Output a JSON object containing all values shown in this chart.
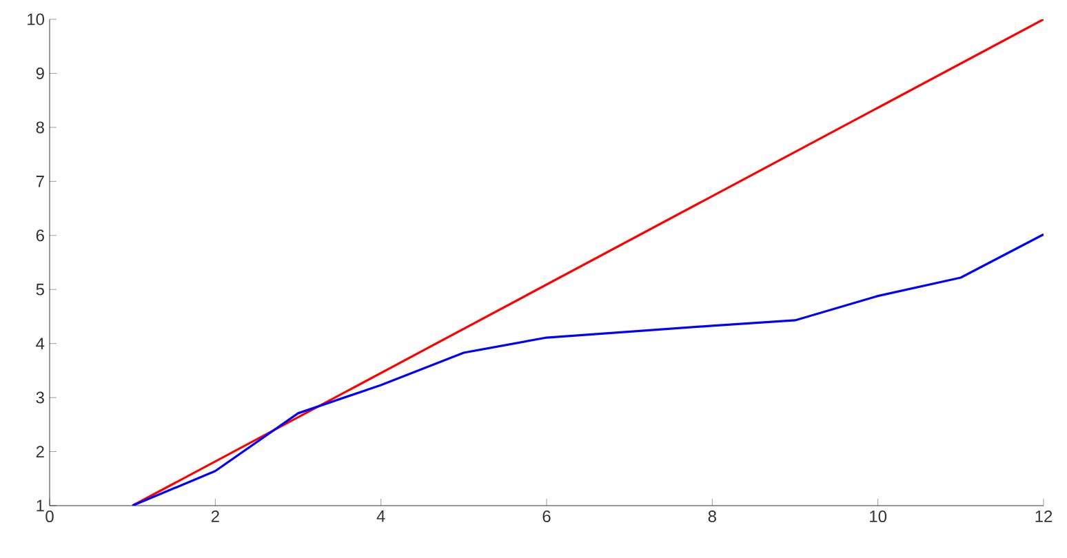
{
  "chart_data": {
    "type": "line",
    "xlim": [
      0,
      12
    ],
    "ylim": [
      1,
      10
    ],
    "xticks": [
      0,
      2,
      4,
      6,
      8,
      10,
      12
    ],
    "yticks": [
      1,
      2,
      3,
      4,
      5,
      6,
      7,
      8,
      9,
      10
    ],
    "series": [
      {
        "color": "#ff0000",
        "x": [
          1,
          12
        ],
        "values": [
          1,
          10
        ]
      },
      {
        "color": "#0000ff",
        "x": [
          1,
          2,
          3,
          4,
          5,
          6,
          7,
          8,
          9,
          10,
          11,
          12
        ],
        "values": [
          1,
          1.64,
          2.71,
          3.23,
          3.83,
          4.11,
          4.22,
          4.33,
          4.43,
          4.88,
          5.22,
          6.02
        ]
      }
    ]
  }
}
